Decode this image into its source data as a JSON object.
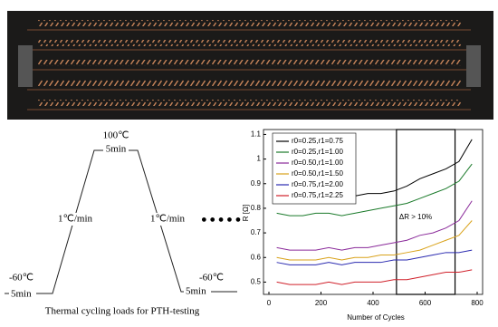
{
  "thermal_profile": {
    "high_temp": "100℃",
    "high_hold": "5min",
    "ramp_up": "1℃/min",
    "ramp_down": "1℃/min",
    "low_temp_start": "-60℃",
    "low_hold_start": "5min",
    "low_temp_end": "-60℃",
    "low_hold_end": "5min",
    "caption": "Thermal cycling loads for PTH-testing"
  },
  "chart_data": {
    "type": "line",
    "xlabel": "Number of Cycles",
    "ylabel": "R [Ω]",
    "x": [
      30,
      80,
      130,
      180,
      230,
      280,
      330,
      380,
      430,
      480,
      530,
      580,
      630,
      680,
      730,
      780
    ],
    "series": [
      {
        "name": "r0=0.25,r1=0.75",
        "color": "#000000",
        "values": [
          0.85,
          0.84,
          0.84,
          0.85,
          0.85,
          0.84,
          0.85,
          0.86,
          0.86,
          0.87,
          0.89,
          0.92,
          0.94,
          0.96,
          0.99,
          1.08
        ]
      },
      {
        "name": "r0=0.25,r1=1.00",
        "color": "#1a7a2a",
        "values": [
          0.78,
          0.77,
          0.77,
          0.78,
          0.78,
          0.77,
          0.78,
          0.79,
          0.8,
          0.81,
          0.82,
          0.84,
          0.86,
          0.88,
          0.91,
          0.98
        ]
      },
      {
        "name": "r0=0.50,r1=1.00",
        "color": "#8a2a9a",
        "values": [
          0.64,
          0.63,
          0.63,
          0.63,
          0.64,
          0.63,
          0.64,
          0.64,
          0.65,
          0.66,
          0.67,
          0.69,
          0.7,
          0.72,
          0.75,
          0.83
        ]
      },
      {
        "name": "r0=0.50,r1=1.50",
        "color": "#d9a21a",
        "values": [
          0.6,
          0.59,
          0.59,
          0.59,
          0.6,
          0.59,
          0.6,
          0.6,
          0.61,
          0.61,
          0.62,
          0.63,
          0.65,
          0.67,
          0.69,
          0.75
        ]
      },
      {
        "name": "r0=0.75,r1=2.00",
        "color": "#2a2ab0",
        "values": [
          0.58,
          0.57,
          0.57,
          0.57,
          0.58,
          0.57,
          0.58,
          0.58,
          0.58,
          0.59,
          0.59,
          0.6,
          0.61,
          0.62,
          0.62,
          0.63
        ]
      },
      {
        "name": "r0=0.75,r1=2.25",
        "color": "#d0202a",
        "values": [
          0.5,
          0.49,
          0.49,
          0.49,
          0.5,
          0.49,
          0.5,
          0.5,
          0.5,
          0.51,
          0.51,
          0.52,
          0.53,
          0.54,
          0.54,
          0.55
        ]
      }
    ],
    "xlim": [
      0,
      800
    ],
    "xticks": [
      0,
      200,
      400,
      600,
      800
    ],
    "ylim": [
      0.45,
      1.12
    ],
    "yticks": [
      0.5,
      0.6,
      0.7,
      0.8,
      0.9,
      1,
      1.1
    ],
    "highlight_range": [
      490,
      715
    ],
    "annotation": "ΔR > 10%",
    "legend": "upper left"
  }
}
